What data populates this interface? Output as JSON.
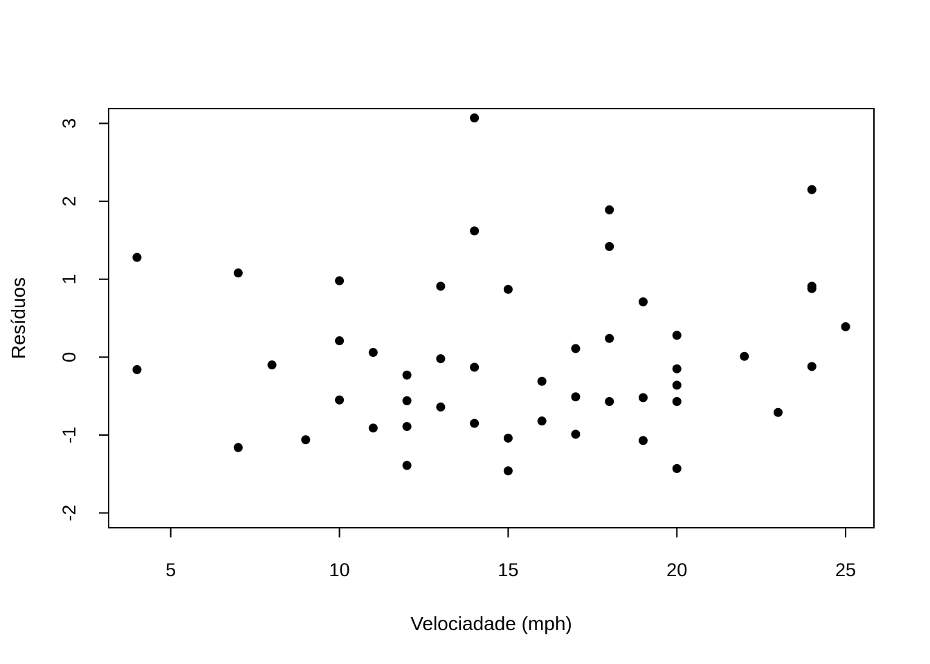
{
  "chart_data": {
    "type": "scatter",
    "xlabel": "Velociadade (mph)",
    "ylabel": "Resíduos",
    "xlim": [
      3.16,
      25.84
    ],
    "ylim": [
      -2.19,
      3.19
    ],
    "xticks": [
      5,
      10,
      15,
      20,
      25
    ],
    "yticks": [
      -2,
      -1,
      0,
      1,
      2,
      3
    ],
    "xtick_labels": [
      "5",
      "10",
      "15",
      "20",
      "25"
    ],
    "ytick_labels": [
      "-2",
      "-1",
      "0",
      "1",
      "2",
      "3"
    ],
    "grid": false,
    "marker_color": "#000000",
    "x": [
      4,
      4,
      7,
      7,
      8,
      9,
      10,
      10,
      10,
      11,
      11,
      12,
      12,
      12,
      12,
      13,
      13,
      13,
      14,
      14,
      14,
      14,
      15,
      15,
      15,
      16,
      16,
      17,
      17,
      17,
      18,
      18,
      18,
      18,
      19,
      19,
      19,
      20,
      20,
      20,
      20,
      20,
      22,
      23,
      24,
      24,
      24,
      24,
      25
    ],
    "y": [
      1.28,
      -0.16,
      1.08,
      -1.16,
      -0.1,
      -1.06,
      0.98,
      0.21,
      -0.55,
      0.06,
      -0.91,
      -0.23,
      -0.56,
      -0.89,
      -1.39,
      0.91,
      -0.02,
      -0.64,
      3.07,
      1.62,
      -0.13,
      -0.85,
      0.87,
      -1.04,
      -1.46,
      -0.31,
      -0.82,
      0.11,
      -0.51,
      -0.99,
      1.89,
      1.42,
      0.24,
      -0.57,
      0.71,
      -0.52,
      -1.07,
      0.28,
      -0.15,
      -0.36,
      -0.57,
      -1.43,
      0.01,
      -0.71,
      2.15,
      0.91,
      0.88,
      -0.12,
      0.39
    ]
  }
}
